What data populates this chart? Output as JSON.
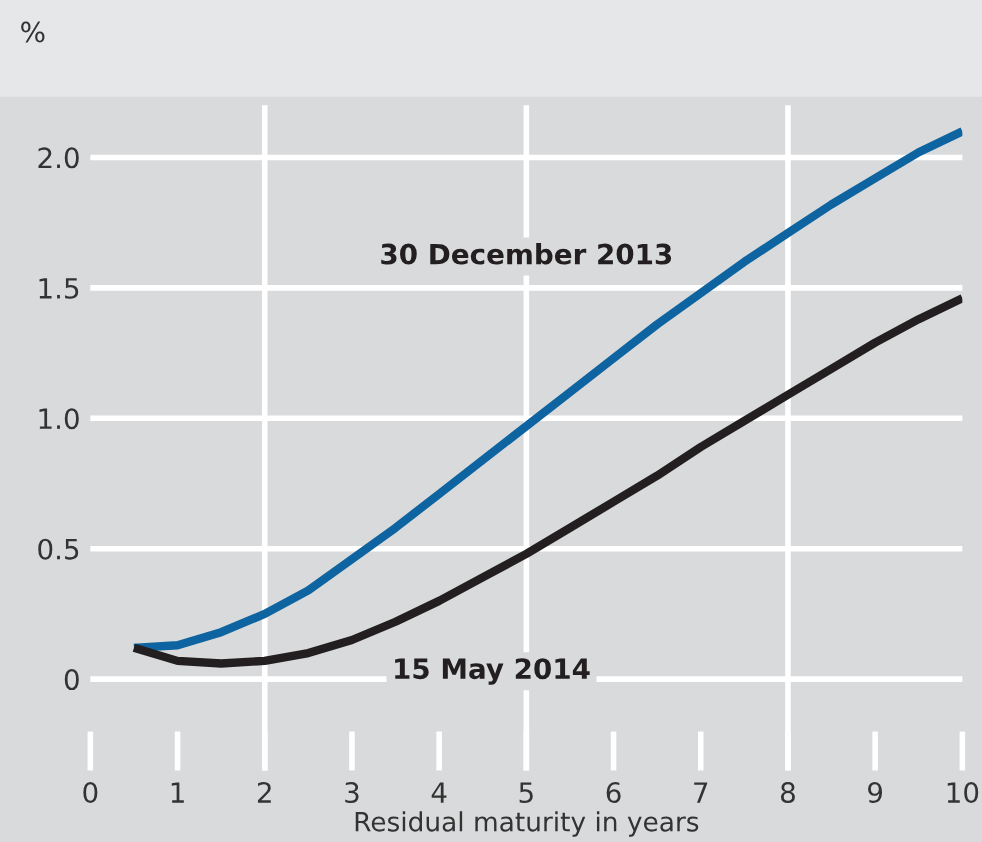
{
  "chart_data": {
    "type": "line",
    "ylabel": "%",
    "xlabel": "Residual maturity in years",
    "x": [
      0.5,
      1,
      1.5,
      2,
      2.5,
      3,
      3.5,
      4,
      4.5,
      5,
      5.5,
      6,
      6.5,
      7,
      7.5,
      8,
      8.5,
      9,
      9.5,
      10
    ],
    "series": [
      {
        "name": "30 December 2013",
        "color": "#0e64a0",
        "values": [
          0.12,
          0.13,
          0.18,
          0.25,
          0.34,
          0.46,
          0.58,
          0.71,
          0.84,
          0.97,
          1.1,
          1.23,
          1.36,
          1.48,
          1.6,
          1.71,
          1.82,
          1.92,
          2.02,
          2.1
        ]
      },
      {
        "name": "15 May 2014",
        "color": "#231f20",
        "values": [
          0.12,
          0.07,
          0.06,
          0.07,
          0.1,
          0.15,
          0.22,
          0.3,
          0.39,
          0.48,
          0.58,
          0.68,
          0.78,
          0.89,
          0.99,
          1.09,
          1.19,
          1.29,
          1.38,
          1.46
        ]
      }
    ],
    "xlim": [
      0,
      10
    ],
    "ylim": [
      -0.35,
      2.2
    ],
    "xticks": [
      0,
      1,
      2,
      3,
      4,
      5,
      6,
      7,
      8,
      9,
      10
    ],
    "yticks": [
      {
        "value": 0,
        "label": "0"
      },
      {
        "value": 0.5,
        "label": "0.5"
      },
      {
        "value": 1,
        "label": "1.0"
      },
      {
        "value": 1.5,
        "label": "1.5"
      },
      {
        "value": 2,
        "label": "2.0"
      }
    ],
    "grid": "y",
    "ref_lines": [
      {
        "axis": "x",
        "value": 2,
        "color": "#ffffff"
      },
      {
        "axis": "x",
        "value": 5,
        "color": "#ffffff"
      },
      {
        "axis": "x",
        "value": 8,
        "color": "#ffffff"
      }
    ],
    "legend": false,
    "line_style": "solid",
    "marker": "none"
  }
}
